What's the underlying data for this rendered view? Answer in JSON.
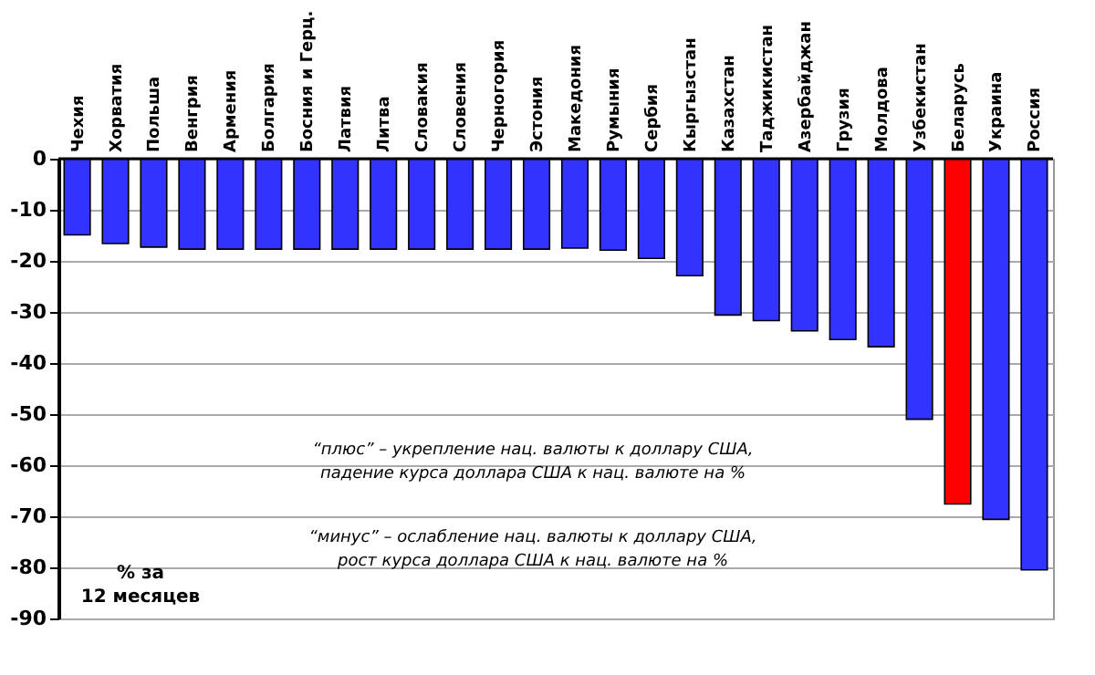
{
  "chart_data": {
    "type": "bar",
    "categories": [
      "Чехия",
      "Хорватия",
      "Польша",
      "Венгрия",
      "Армения",
      "Болгария",
      "Босния и Герц.",
      "Латвия",
      "Литва",
      "Словакия",
      "Словения",
      "Черногория",
      "Эстония",
      "Македония",
      "Румыния",
      "Сербия",
      "Кыргызстан",
      "Казахстан",
      "Таджикистан",
      "Азербайджан",
      "Грузия",
      "Молдова",
      "Узбекистан",
      "Беларусь",
      "Украина",
      "Россия"
    ],
    "values": [
      -14.9,
      -16.6,
      -17.3,
      -17.7,
      -17.7,
      -17.7,
      -17.7,
      -17.7,
      -17.7,
      -17.7,
      -17.7,
      -17.7,
      -17.7,
      -17.5,
      -17.9,
      -19.5,
      -22.9,
      -30.6,
      -31.7,
      -33.7,
      -35.4,
      -36.8,
      -51,
      -67.6,
      -70.6,
      -80.5
    ],
    "colors": [
      "#3333ff",
      "#3333ff",
      "#3333ff",
      "#3333ff",
      "#3333ff",
      "#3333ff",
      "#3333ff",
      "#3333ff",
      "#3333ff",
      "#3333ff",
      "#3333ff",
      "#3333ff",
      "#3333ff",
      "#3333ff",
      "#3333ff",
      "#3333ff",
      "#3333ff",
      "#3333ff",
      "#3333ff",
      "#3333ff",
      "#3333ff",
      "#3333ff",
      "#3333ff",
      "#ff0000",
      "#3333ff",
      "#3333ff"
    ],
    "ylim": [
      -90,
      0
    ],
    "yticks": [
      0,
      -10,
      -20,
      -30,
      -40,
      -50,
      -60,
      -70,
      -80,
      -90
    ],
    "grid": "y",
    "annotations": [
      "“плюс” – укрепление нац. валюты к доллару США,\nпадение курса доллара США к нац. валюте на %",
      "“минус” – ослабление нац. валюты к доллару США,\nрост курса доллара США к нац. валюте на %",
      "% за\n12 месяцев"
    ]
  }
}
